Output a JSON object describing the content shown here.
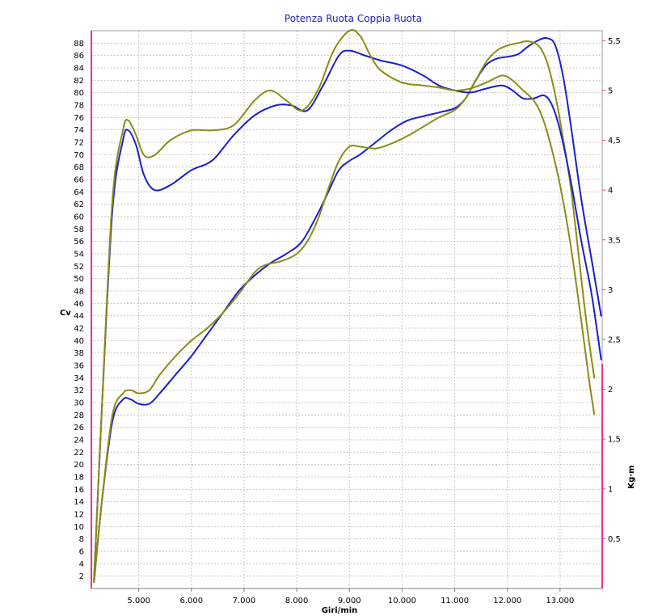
{
  "chart_data": {
    "type": "line",
    "title": "Potenza Ruota Coppia Ruota",
    "xlabel": "Giri/min",
    "ylabel_left": "Cv",
    "ylabel_right": "Kg·m",
    "xlim": [
      4100,
      13800
    ],
    "ylim_left": [
      0,
      90
    ],
    "ylim_right": [
      0,
      5.6
    ],
    "grid": true,
    "x_ticks": [
      {
        "value": 5000,
        "label": "5.000"
      },
      {
        "value": 6000,
        "label": "6.000"
      },
      {
        "value": 7000,
        "label": "7.000"
      },
      {
        "value": 8000,
        "label": "8.000"
      },
      {
        "value": 9000,
        "label": "9.000"
      },
      {
        "value": 10000,
        "label": "10.000"
      },
      {
        "value": 11000,
        "label": "11.000"
      },
      {
        "value": 12000,
        "label": "12.000"
      },
      {
        "value": 13000,
        "label": "13.000"
      }
    ],
    "y_left_ticks": [
      {
        "value": 2,
        "label": "2"
      },
      {
        "value": 4,
        "label": "4"
      },
      {
        "value": 6,
        "label": "6"
      },
      {
        "value": 8,
        "label": "8"
      },
      {
        "value": 10,
        "label": "10"
      },
      {
        "value": 12,
        "label": "12"
      },
      {
        "value": 14,
        "label": "14"
      },
      {
        "value": 16,
        "label": "16"
      },
      {
        "value": 18,
        "label": "18"
      },
      {
        "value": 20,
        "label": "20"
      },
      {
        "value": 22,
        "label": "22"
      },
      {
        "value": 24,
        "label": "24"
      },
      {
        "value": 26,
        "label": "26"
      },
      {
        "value": 28,
        "label": "28"
      },
      {
        "value": 30,
        "label": "30"
      },
      {
        "value": 32,
        "label": "32"
      },
      {
        "value": 34,
        "label": "34"
      },
      {
        "value": 36,
        "label": "36"
      },
      {
        "value": 38,
        "label": "38"
      },
      {
        "value": 40,
        "label": "40"
      },
      {
        "value": 42,
        "label": "42"
      },
      {
        "value": 44,
        "label": "44"
      },
      {
        "value": 46,
        "label": "46"
      },
      {
        "value": 48,
        "label": "48"
      },
      {
        "value": 50,
        "label": "50"
      },
      {
        "value": 52,
        "label": "52"
      },
      {
        "value": 54,
        "label": "54"
      },
      {
        "value": 56,
        "label": "56"
      },
      {
        "value": 58,
        "label": "58"
      },
      {
        "value": 60,
        "label": "60"
      },
      {
        "value": 62,
        "label": "62"
      },
      {
        "value": 64,
        "label": "64"
      },
      {
        "value": 66,
        "label": "66"
      },
      {
        "value": 68,
        "label": "68"
      },
      {
        "value": 70,
        "label": "70"
      },
      {
        "value": 72,
        "label": "72"
      },
      {
        "value": 74,
        "label": "74"
      },
      {
        "value": 76,
        "label": "76"
      },
      {
        "value": 78,
        "label": "78"
      },
      {
        "value": 80,
        "label": "80"
      },
      {
        "value": 82,
        "label": "82"
      },
      {
        "value": 84,
        "label": "84"
      },
      {
        "value": 86,
        "label": "86"
      },
      {
        "value": 88,
        "label": "88"
      }
    ],
    "y_right_ticks": [
      {
        "value": 0.5,
        "label": "0,5"
      },
      {
        "value": 1,
        "label": "1"
      },
      {
        "value": 1.5,
        "label": "1,5"
      },
      {
        "value": 2,
        "label": "2"
      },
      {
        "value": 2.5,
        "label": "2,5"
      },
      {
        "value": 3,
        "label": "3"
      },
      {
        "value": 3.5,
        "label": "3,5"
      },
      {
        "value": 4,
        "label": "4"
      },
      {
        "value": 4.5,
        "label": "4,5"
      },
      {
        "value": 5,
        "label": "5"
      },
      {
        "value": 5.5,
        "label": "5,5"
      }
    ],
    "series": [
      {
        "axis": "left",
        "color": "#1c1cd0",
        "x": [
          4150,
          4300,
          4500,
          4700,
          4850,
          5000,
          5200,
          5400,
          5700,
          6000,
          6300,
          6600,
          6900,
          7200,
          7500,
          7800,
          8100,
          8400,
          8600,
          8800,
          9000,
          9200,
          9500,
          9800,
          10100,
          10400,
          10700,
          11000,
          11200,
          11400,
          11600,
          11800,
          12000,
          12200,
          12400,
          12600,
          12750,
          12900,
          13050,
          13200,
          13400,
          13600,
          13780
        ],
        "y": [
          1,
          14,
          27,
          30.5,
          30.5,
          29.8,
          29.8,
          31.5,
          34.5,
          37.5,
          41,
          44.5,
          48,
          50.5,
          52.5,
          54,
          56,
          60.5,
          64,
          67.5,
          69,
          70,
          72,
          74,
          75.5,
          76.2,
          76.8,
          77.5,
          79,
          82,
          84.5,
          85.5,
          85.8,
          86.2,
          87.5,
          88.5,
          88.8,
          87.8,
          83,
          75,
          63,
          53,
          44
        ]
      },
      {
        "axis": "left",
        "color": "#8c8c14",
        "x": [
          4150,
          4300,
          4500,
          4700,
          4850,
          5000,
          5200,
          5400,
          5700,
          6000,
          6300,
          6600,
          6900,
          7200,
          7400,
          7700,
          8000,
          8200,
          8400,
          8600,
          8800,
          9000,
          9200,
          9500,
          9800,
          10100,
          10400,
          10700,
          11000,
          11200,
          11400,
          11600,
          11800,
          12000,
          12200,
          12400,
          12600,
          12750,
          12900,
          13050,
          13200,
          13350,
          13500,
          13650
        ],
        "y": [
          1,
          14,
          28,
          31.5,
          32,
          31.5,
          32,
          34.5,
          37.5,
          40,
          42,
          44.5,
          47.5,
          51,
          52.2,
          52.8,
          54,
          56,
          59.5,
          64.5,
          69,
          71.3,
          71.3,
          71,
          71.8,
          73,
          74.5,
          76,
          77.2,
          79,
          82,
          85,
          86.8,
          87.6,
          88,
          88.3,
          87.5,
          85,
          80,
          73,
          65,
          54,
          43,
          34
        ]
      },
      {
        "axis": "right",
        "color": "#1c1cd0",
        "x": [
          4150,
          4300,
          4500,
          4700,
          4800,
          4950,
          5100,
          5300,
          5600,
          6000,
          6400,
          6800,
          7200,
          7600,
          7900,
          8200,
          8500,
          8800,
          9000,
          9300,
          9600,
          10000,
          10400,
          10700,
          11000,
          11300,
          11600,
          11900,
          12100,
          12300,
          12500,
          12700,
          12850,
          13000,
          13200,
          13400,
          13600,
          13780
        ],
        "x_note": "",
        "y": [
          0.08,
          1.8,
          3.8,
          4.5,
          4.6,
          4.45,
          4.15,
          4.0,
          4.05,
          4.2,
          4.3,
          4.55,
          4.75,
          4.85,
          4.85,
          4.8,
          5.05,
          5.35,
          5.4,
          5.35,
          5.3,
          5.25,
          5.15,
          5.05,
          5.0,
          4.98,
          5.02,
          5.05,
          5.0,
          4.92,
          4.92,
          4.95,
          4.85,
          4.6,
          4.1,
          3.5,
          2.95,
          2.3
        ]
      },
      {
        "axis": "right",
        "color": "#8c8c14",
        "x": [
          4150,
          4300,
          4500,
          4700,
          4800,
          4950,
          5100,
          5300,
          5600,
          6000,
          6400,
          6800,
          7200,
          7500,
          7800,
          8100,
          8400,
          8700,
          9000,
          9200,
          9400,
          9600,
          10000,
          10400,
          10700,
          11000,
          11300,
          11600,
          11900,
          12100,
          12300,
          12500,
          12650,
          12800,
          13000,
          13200,
          13400,
          13550,
          13650
        ],
        "y": [
          0.08,
          1.8,
          3.9,
          4.6,
          4.7,
          4.55,
          4.35,
          4.35,
          4.5,
          4.6,
          4.6,
          4.65,
          4.9,
          5.0,
          4.9,
          4.8,
          5.0,
          5.4,
          5.6,
          5.55,
          5.35,
          5.2,
          5.08,
          5.05,
          5.03,
          5.0,
          5.02,
          5.08,
          5.15,
          5.1,
          5.0,
          4.9,
          4.75,
          4.5,
          4.05,
          3.45,
          2.7,
          2.1,
          1.75
        ]
      }
    ]
  }
}
